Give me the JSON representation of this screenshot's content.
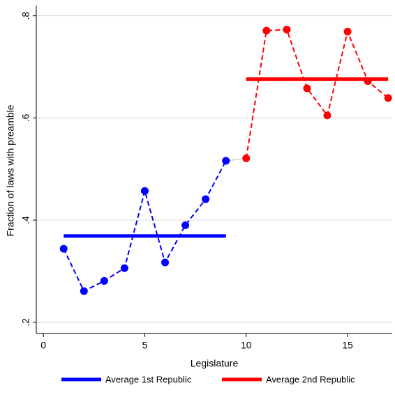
{
  "chart_data": {
    "type": "line",
    "x_label": "Legislature",
    "y_label": "Fraction of laws with preamble",
    "xlim": [
      -0.35,
      17.2
    ],
    "ylim": [
      0.178,
      0.82
    ],
    "xticks": [
      0,
      5,
      10,
      15
    ],
    "yticks": [
      {
        "value": 0.2,
        "label": ".2"
      },
      {
        "value": 0.4,
        "label": ".4"
      },
      {
        "value": 0.6,
        "label": ".6"
      },
      {
        "value": 0.8,
        "label": ".8"
      }
    ],
    "grid": true,
    "points": [
      {
        "color": "#0000ff",
        "x": [
          1,
          2,
          3,
          4,
          5,
          6,
          7,
          8,
          9
        ],
        "values": [
          0.344,
          0.261,
          0.281,
          0.306,
          0.457,
          0.317,
          0.39,
          0.441,
          0.516
        ]
      },
      {
        "color": "#ff0000",
        "x": [
          10,
          11,
          12,
          13,
          14,
          15,
          16,
          17
        ],
        "values": [
          0.521,
          0.771,
          0.773,
          0.658,
          0.605,
          0.769,
          0.672,
          0.639
        ]
      }
    ],
    "series": [
      {
        "name": "Average 1st Republic",
        "color": "#0000ff",
        "x": [
          1,
          9
        ],
        "values": [
          0.369,
          0.369
        ]
      },
      {
        "name": "Average 2nd Republic",
        "color": "#ff0000",
        "x": [
          10,
          17
        ],
        "values": [
          0.676,
          0.676
        ]
      }
    ]
  }
}
